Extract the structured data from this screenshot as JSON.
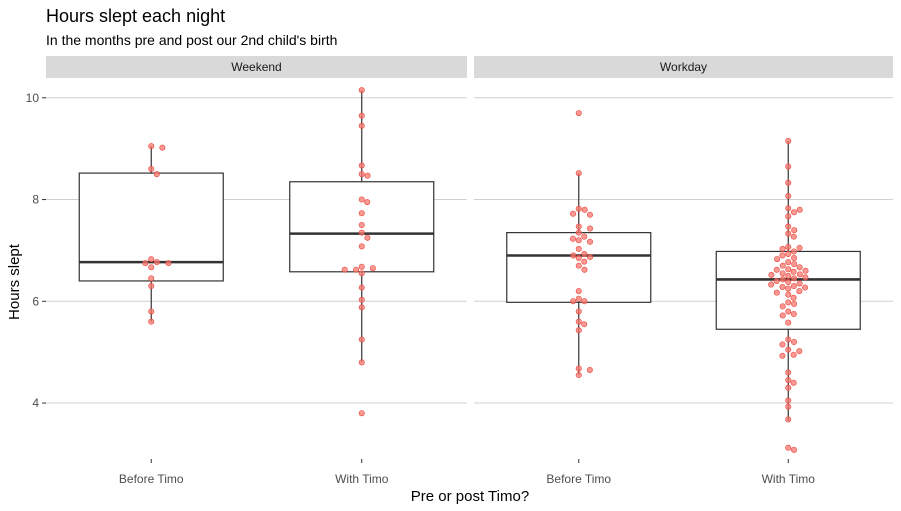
{
  "chart_data": {
    "type": "box",
    "title": "Hours slept each night",
    "subtitle": "In the months pre and post our 2nd child's birth",
    "xlabel": "Pre or post Timo?",
    "ylabel": "Hours slept",
    "ylim": [
      2.9,
      10.35
    ],
    "yticks": [
      4,
      6,
      8,
      10
    ],
    "categories": [
      "Before Timo",
      "With Timo"
    ],
    "grid": true,
    "point_color": "#f8766d",
    "box_color": "#333333",
    "panels": [
      {
        "name": "Weekend",
        "boxes": [
          {
            "category": "Before Timo",
            "whisker_low": 5.6,
            "q1": 6.4,
            "median": 6.77,
            "q3": 8.52,
            "whisker_high": 9.05,
            "points": [
              9.05,
              9.02,
              8.6,
              8.5,
              6.83,
              6.77,
              6.75,
              6.75,
              6.67,
              6.45,
              6.3,
              5.8,
              5.6
            ]
          },
          {
            "category": "With Timo",
            "whisker_low": 4.8,
            "q1": 6.58,
            "median": 7.33,
            "q3": 8.35,
            "whisker_high": 10.15,
            "points": [
              10.15,
              9.65,
              9.45,
              8.67,
              8.5,
              8.47,
              8.0,
              7.95,
              7.73,
              7.5,
              7.35,
              7.25,
              7.08,
              6.68,
              6.65,
              6.62,
              6.62,
              6.55,
              6.27,
              6.03,
              5.88,
              5.25,
              4.8,
              3.8
            ]
          }
        ]
      },
      {
        "name": "Workday",
        "boxes": [
          {
            "category": "Before Timo",
            "whisker_low": 4.55,
            "q1": 5.98,
            "median": 6.9,
            "q3": 7.35,
            "whisker_high": 8.52,
            "points": [
              9.7,
              8.52,
              7.82,
              7.8,
              7.72,
              7.7,
              7.47,
              7.43,
              7.35,
              7.27,
              7.23,
              7.2,
              7.17,
              7.03,
              6.93,
              6.9,
              6.87,
              6.85,
              6.78,
              6.7,
              6.62,
              6.2,
              6.05,
              6.0,
              6.0,
              5.8,
              5.6,
              5.55,
              5.43,
              4.68,
              4.65,
              4.55
            ]
          },
          {
            "category": "With Timo",
            "whisker_low": 3.65,
            "q1": 5.45,
            "median": 6.43,
            "q3": 6.98,
            "whisker_high": 9.15,
            "points": [
              9.15,
              8.65,
              8.33,
              8.07,
              7.83,
              7.8,
              7.75,
              7.67,
              7.47,
              7.4,
              7.33,
              7.27,
              7.07,
              7.05,
              7.03,
              6.98,
              6.93,
              6.9,
              6.85,
              6.83,
              6.77,
              6.73,
              6.7,
              6.67,
              6.63,
              6.62,
              6.6,
              6.58,
              6.55,
              6.53,
              6.52,
              6.5,
              6.47,
              6.45,
              6.43,
              6.4,
              6.38,
              6.35,
              6.33,
              6.3,
              6.28,
              6.27,
              6.25,
              6.2,
              6.17,
              6.13,
              6.07,
              5.98,
              5.95,
              5.9,
              5.8,
              5.75,
              5.72,
              5.58,
              5.25,
              5.2,
              5.15,
              5.05,
              5.02,
              4.95,
              4.93,
              4.6,
              4.45,
              4.4,
              4.3,
              4.05,
              3.93,
              3.68,
              3.12,
              3.08
            ]
          }
        ]
      }
    ]
  }
}
